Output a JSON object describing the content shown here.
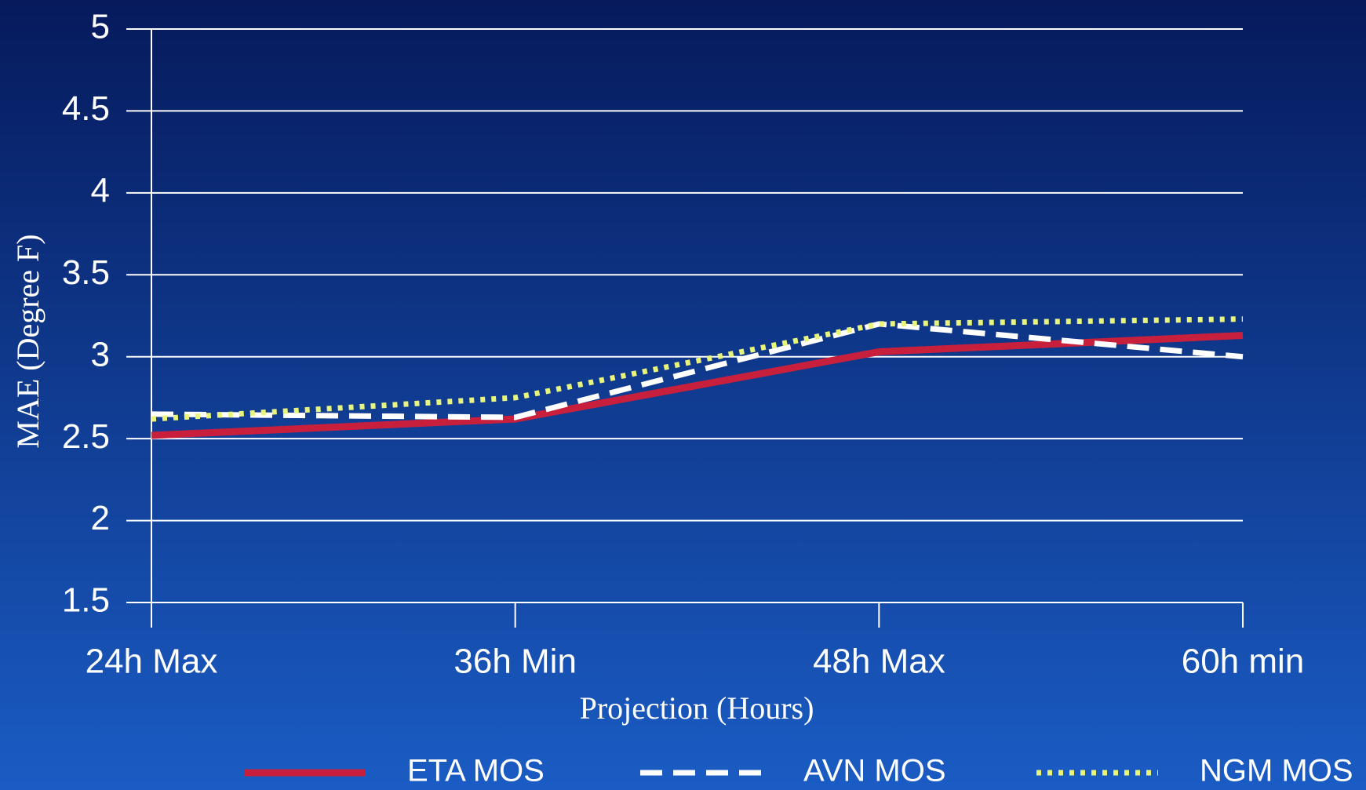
{
  "chart_data": {
    "type": "line",
    "x_label": "Projection (Hours)",
    "y_label": "MAE (Degree F)",
    "categories": [
      "24h Max",
      "36h Min",
      "48h Max",
      "60h min"
    ],
    "series": [
      {
        "name": "ETA MOS",
        "color": "#c8203c",
        "dash": "solid",
        "values": [
          2.52,
          2.62,
          3.03,
          3.13
        ]
      },
      {
        "name": "AVN MOS",
        "color": "#ffffff",
        "dash": "dashed",
        "values": [
          2.65,
          2.63,
          3.2,
          3.0
        ]
      },
      {
        "name": "NGM MOS",
        "color": "#e8f57a",
        "dash": "dotted",
        "values": [
          2.62,
          2.75,
          3.2,
          3.23
        ]
      }
    ],
    "ylim": [
      1.5,
      5
    ],
    "yticks": [
      1.5,
      2,
      2.5,
      3,
      3.5,
      4,
      4.5,
      5
    ],
    "grid": true,
    "legend": "bottom"
  }
}
